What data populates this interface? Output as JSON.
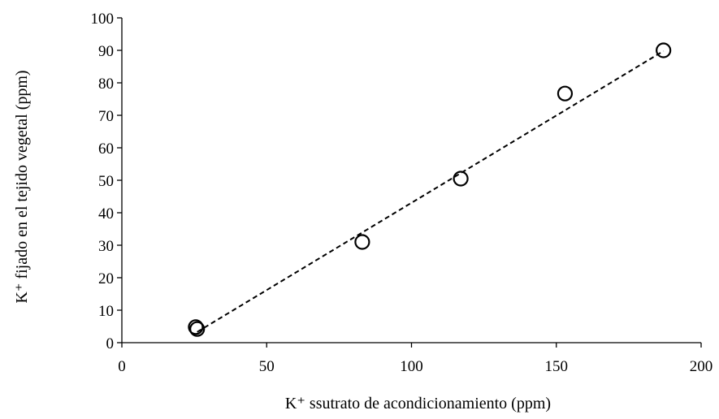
{
  "chart_data": {
    "type": "scatter",
    "xlabel": "K⁺ ssutrato de acondicionamiento (ppm)",
    "ylabel": "K⁺ fijado en el tejido vegetal (ppm)",
    "xlim": [
      0,
      200
    ],
    "ylim": [
      0,
      100
    ],
    "x_ticks": [
      0,
      50,
      100,
      150,
      200
    ],
    "y_ticks": [
      0,
      10,
      20,
      30,
      40,
      50,
      60,
      70,
      80,
      90,
      100
    ],
    "grid": false,
    "legend": "none",
    "series": [
      {
        "x": [
          25.5,
          26,
          83,
          117,
          153,
          187
        ],
        "y": [
          4.8,
          4.2,
          31,
          50.5,
          76.7,
          90
        ],
        "marker": "open-circle"
      }
    ],
    "trendline": {
      "style": "dashed",
      "x": [
        26,
        187
      ],
      "y": [
        3.3,
        89.8
      ]
    }
  }
}
